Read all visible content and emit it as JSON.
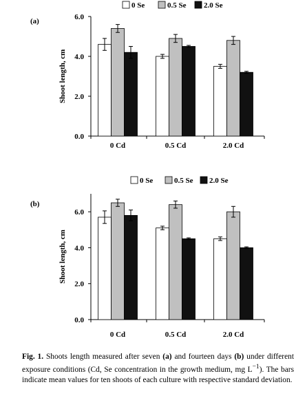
{
  "chart_data": [
    {
      "type": "bar",
      "panel_label": "(a)",
      "categories": [
        "0 Cd",
        "0.5 Cd",
        "2.0 Cd"
      ],
      "series": [
        {
          "name": "0 Se",
          "values": [
            4.6,
            4.0,
            3.5
          ],
          "errors": [
            0.3,
            0.1,
            0.1
          ]
        },
        {
          "name": "0.5 Se",
          "values": [
            5.4,
            4.9,
            4.8
          ],
          "errors": [
            0.2,
            0.2,
            0.2
          ]
        },
        {
          "name": "2.0 Se",
          "values": [
            4.2,
            4.5,
            3.2
          ],
          "errors": [
            0.3,
            0.05,
            0.05
          ]
        }
      ],
      "ylabel": "Shoot length, cm",
      "yticks": [
        "0.0",
        "2.0",
        "4.0",
        "6.0"
      ],
      "ylim": [
        0,
        6
      ],
      "legend_position": "top",
      "colors": [
        "#ffffff",
        "#c0c0c0",
        "#111111"
      ]
    },
    {
      "type": "bar",
      "panel_label": "(b)",
      "categories": [
        "0 Cd",
        "0.5 Cd",
        "2.0 Cd"
      ],
      "series": [
        {
          "name": "0 Se",
          "values": [
            5.7,
            5.1,
            4.5
          ],
          "errors": [
            0.35,
            0.1,
            0.1
          ]
        },
        {
          "name": "0.5 Se",
          "values": [
            6.5,
            6.4,
            6.0
          ],
          "errors": [
            0.2,
            0.2,
            0.3
          ]
        },
        {
          "name": "2.0 Se",
          "values": [
            5.8,
            4.5,
            4.0
          ],
          "errors": [
            0.3,
            0.05,
            0.05
          ]
        }
      ],
      "ylabel": "Shoot length, cm",
      "yticks": [
        "0.0",
        "2.0",
        "4.0",
        "6.0"
      ],
      "ylim": [
        0,
        7
      ],
      "legend_position": "top",
      "colors": [
        "#ffffff",
        "#c0c0c0",
        "#111111"
      ]
    }
  ],
  "caption": {
    "fig": "Fig. 1.",
    "p1": " Shoots length measured after seven ",
    "a": "(a)",
    "p2": " and fourteen days ",
    "b": "(b)",
    "p3": " under different exposure conditions (Cd, Se concentration in the growth medium, mg L",
    "sup": "−1",
    "p4": "). The bars indicate mean values for ten shoots of each culture with respective standard deviation."
  }
}
